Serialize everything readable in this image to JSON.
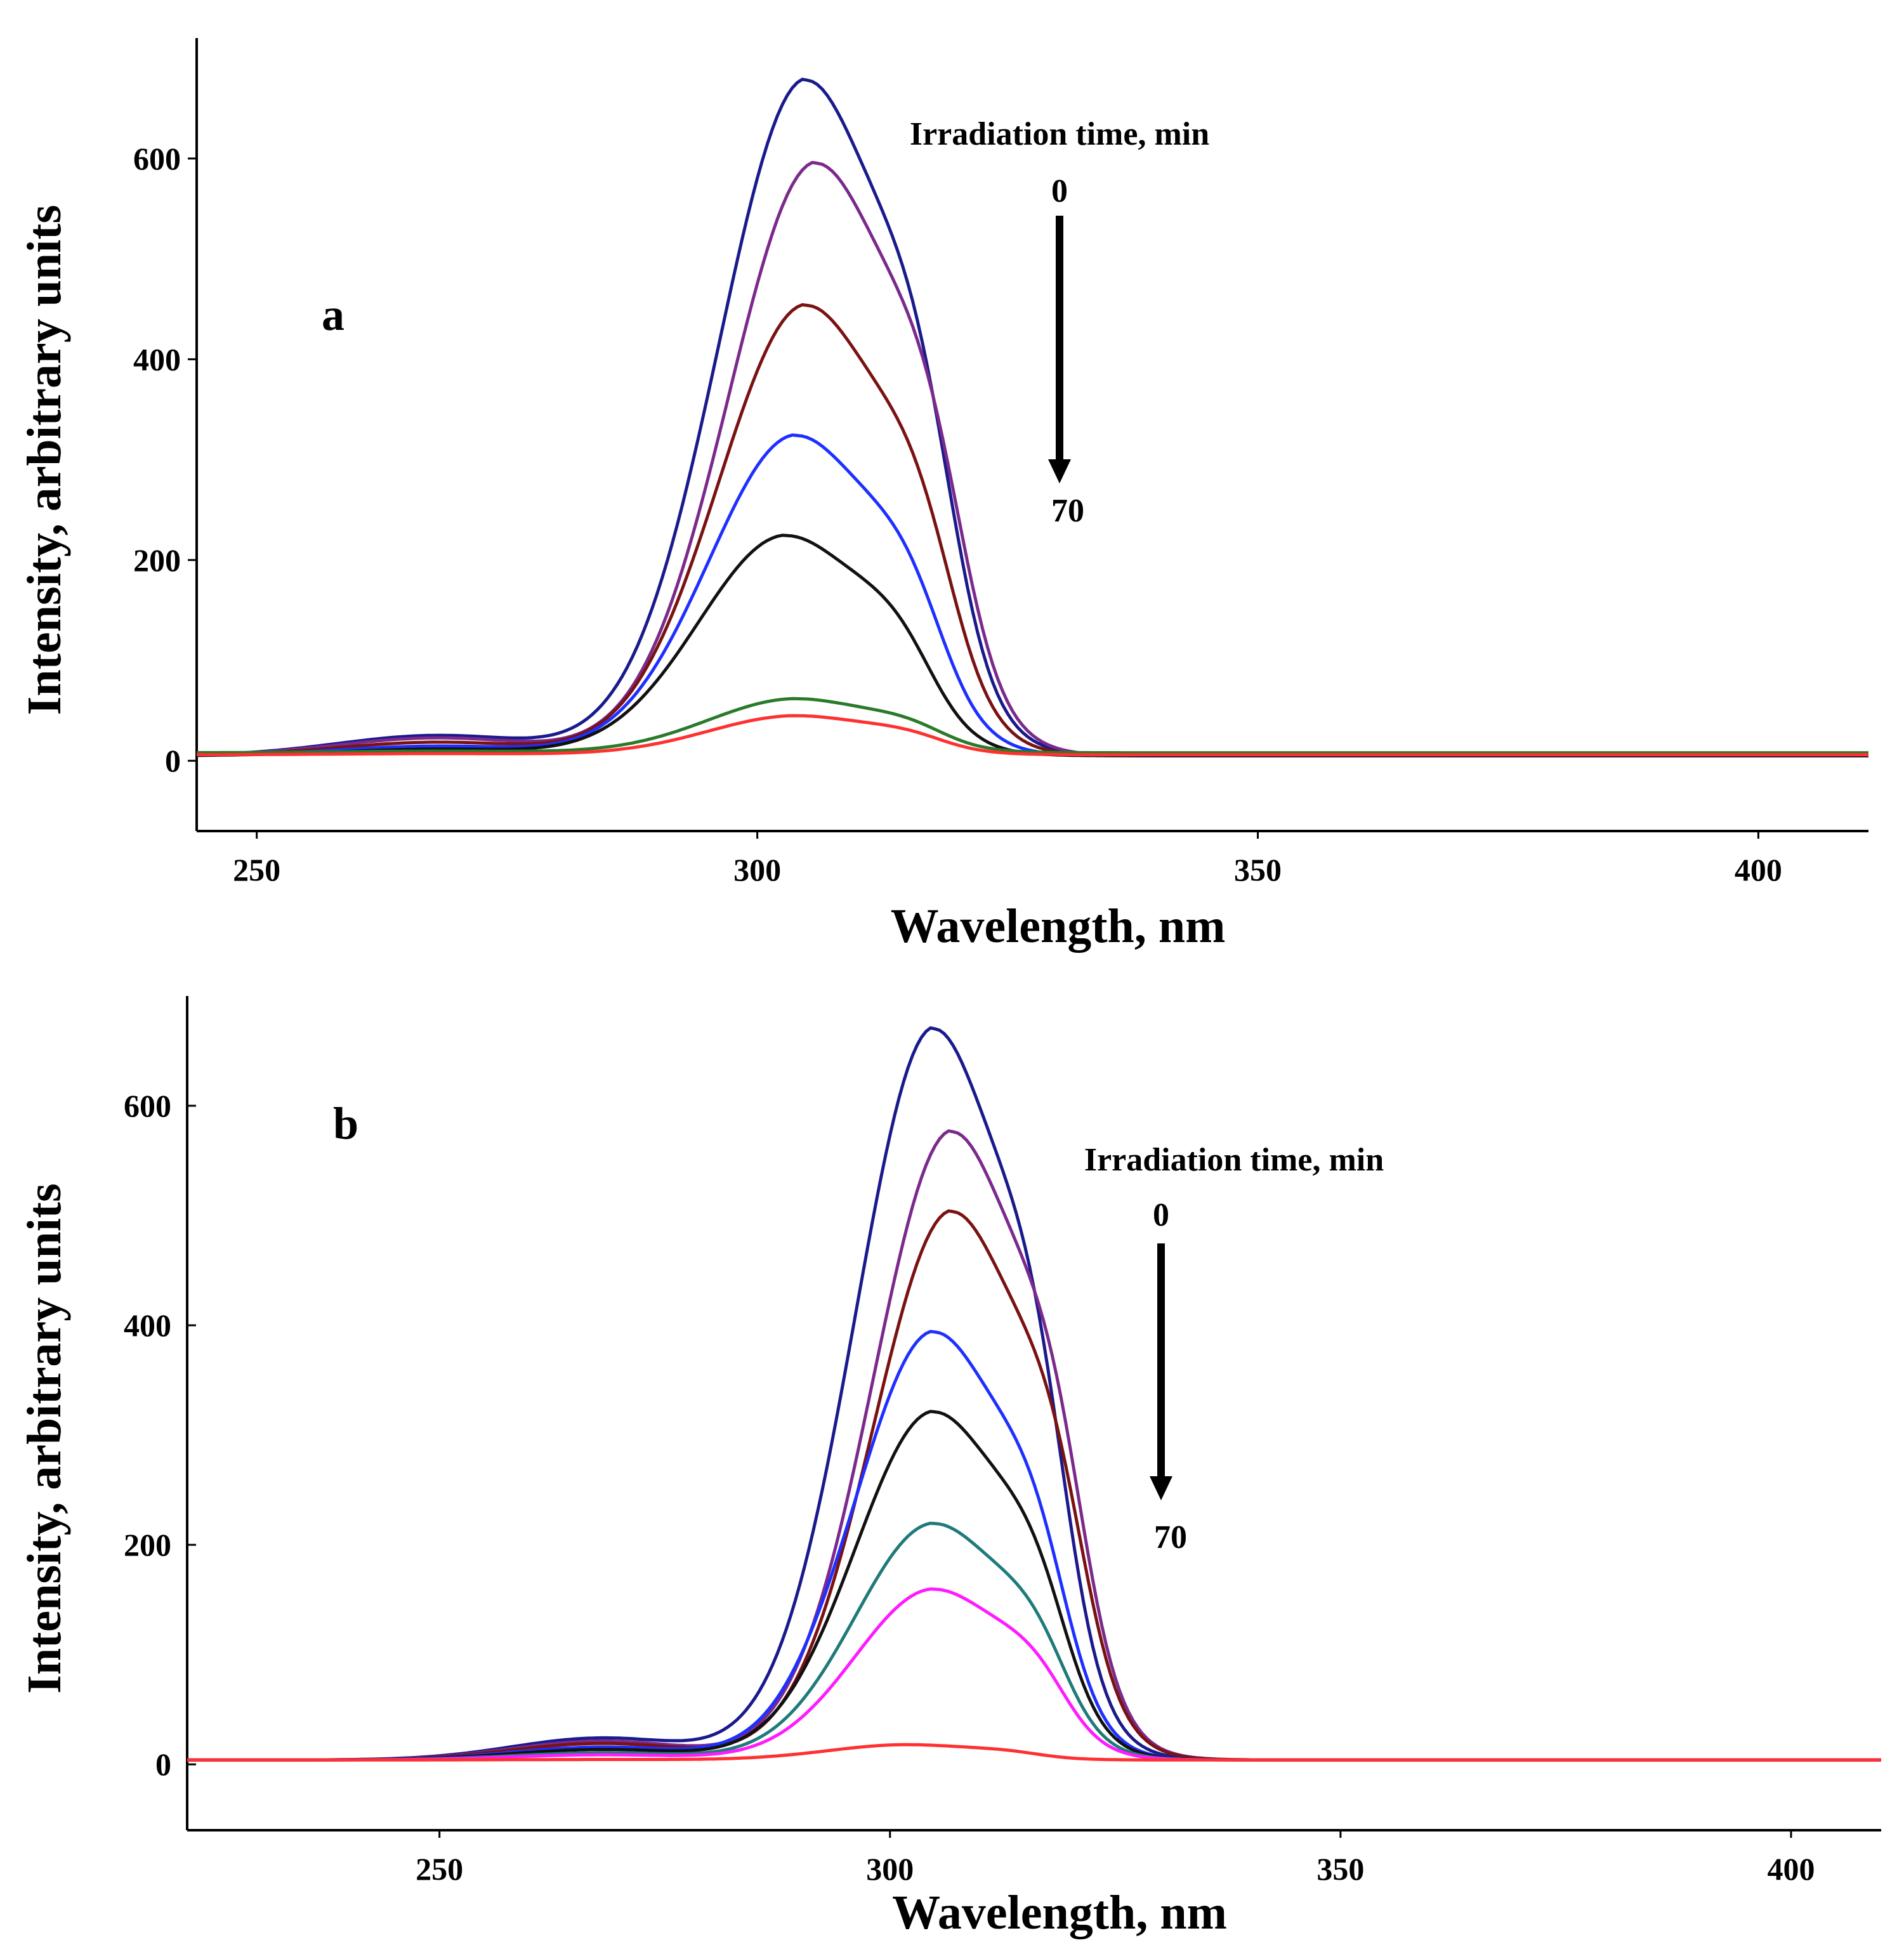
{
  "chart_data": [
    {
      "type": "line",
      "panel_label": "a",
      "xlabel": "Wavelength, nm",
      "ylabel": "Intensity, arbitrary units",
      "xlim": [
        244,
        411
      ],
      "ylim": [
        -70,
        720
      ],
      "x_ticks": [
        250,
        300,
        350,
        400
      ],
      "x_tick_labels": [
        "250",
        "300",
        "350",
        "400"
      ],
      "y_ticks": [
        0,
        200,
        400,
        600
      ],
      "y_tick_labels": [
        "0",
        "200",
        "400",
        "600"
      ],
      "annotation": {
        "title": "Irradiation time, min",
        "start": "0",
        "end": "70"
      },
      "series": [
        {
          "name": "curve 1",
          "color": "#1a1a8c",
          "peak_x": 305,
          "peak_y": 680,
          "baseline": 5
        },
        {
          "name": "curve 2",
          "color": "#7b2a8c",
          "peak_x": 306,
          "peak_y": 597,
          "baseline": 5
        },
        {
          "name": "curve 3",
          "color": "#7a1212",
          "peak_x": 305,
          "peak_y": 455,
          "baseline": 5
        },
        {
          "name": "curve 4",
          "color": "#1f2fff",
          "peak_x": 304,
          "peak_y": 325,
          "baseline": 5
        },
        {
          "name": "curve 5",
          "color": "#111111",
          "peak_x": 303,
          "peak_y": 225,
          "baseline": 5
        },
        {
          "name": "curve 6",
          "color": "#2a7a2a",
          "peak_x": 304,
          "peak_y": 62,
          "baseline": 8
        },
        {
          "name": "curve 7",
          "color": "#ff3030",
          "peak_x": 304,
          "peak_y": 45,
          "baseline": 6
        }
      ]
    },
    {
      "type": "line",
      "panel_label": "b",
      "xlabel": "Wavelength, nm",
      "ylabel": "Intensity, arbitrary units",
      "xlim": [
        222,
        410
      ],
      "ylim": [
        -60,
        700
      ],
      "x_ticks": [
        250,
        300,
        350,
        400
      ],
      "x_tick_labels": [
        "250",
        "300",
        "350",
        "400"
      ],
      "y_ticks": [
        0,
        200,
        400,
        600
      ],
      "y_tick_labels": [
        "0",
        "200",
        "400",
        "600"
      ],
      "annotation": {
        "title": "Irradiation time, min",
        "start": "0",
        "end": "70"
      },
      "series": [
        {
          "name": "curve 1",
          "color": "#1a1a8c",
          "peak_x": 305,
          "peak_y": 672,
          "baseline": 4
        },
        {
          "name": "curve 2",
          "color": "#7b2a8c",
          "peak_x": 307,
          "peak_y": 578,
          "baseline": 4
        },
        {
          "name": "curve 3",
          "color": "#7a1212",
          "peak_x": 307,
          "peak_y": 505,
          "baseline": 4
        },
        {
          "name": "curve 4",
          "color": "#1f2fff",
          "peak_x": 305,
          "peak_y": 395,
          "baseline": 4
        },
        {
          "name": "curve 5",
          "color": "#111111",
          "peak_x": 305,
          "peak_y": 322,
          "baseline": 4
        },
        {
          "name": "curve 6",
          "color": "#1f7a7a",
          "peak_x": 305,
          "peak_y": 220,
          "baseline": 4
        },
        {
          "name": "curve 7",
          "color": "#ff1aff",
          "peak_x": 305,
          "peak_y": 160,
          "baseline": 4
        },
        {
          "name": "curve 8",
          "color": "#ff3030",
          "peak_x": 302,
          "peak_y": 18,
          "baseline": 4
        }
      ]
    }
  ]
}
